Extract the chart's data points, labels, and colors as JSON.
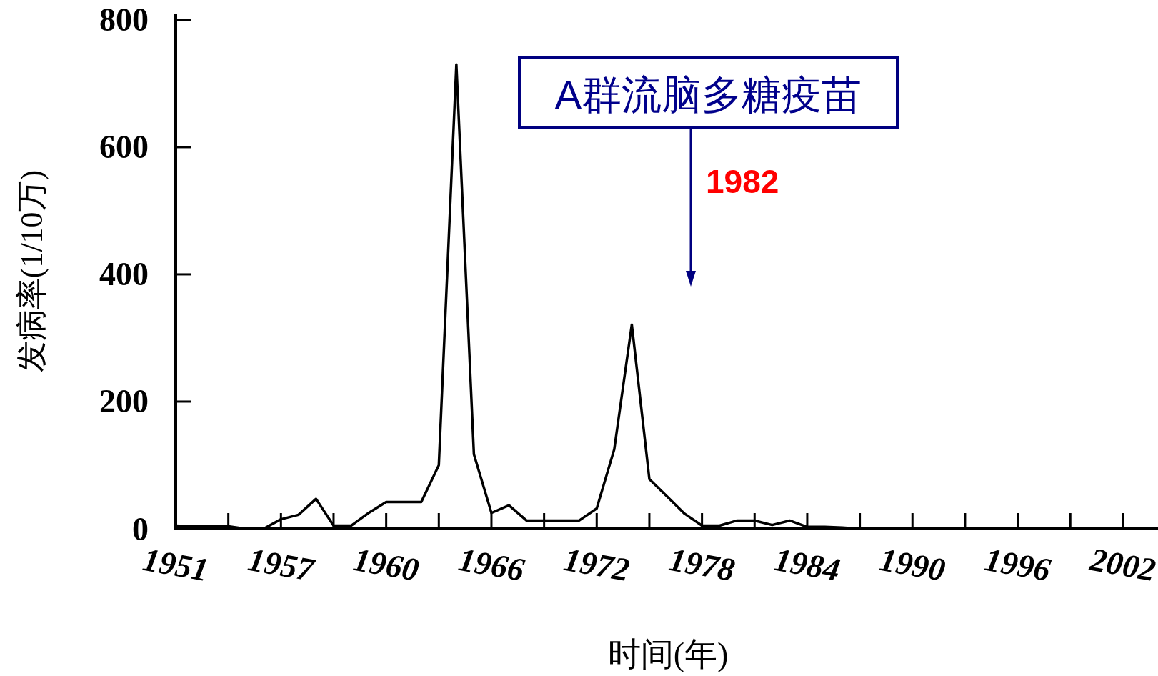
{
  "chart_data": {
    "type": "line",
    "xlabel": "时间(年)",
    "ylabel": "发病率(1/10万)",
    "categories": [
      "1951",
      null,
      null,
      null,
      null,
      null,
      "1957",
      null,
      null,
      null,
      null,
      null,
      "1960",
      null,
      null,
      null,
      null,
      null,
      "1966",
      null,
      null,
      null,
      null,
      null,
      "1972",
      null,
      null,
      null,
      null,
      null,
      "1978",
      null,
      null,
      null,
      null,
      null,
      "1984",
      null,
      null,
      null,
      null,
      null,
      "1990",
      null,
      null,
      null,
      null,
      null,
      "1996",
      null,
      null,
      null,
      null,
      null,
      "2002",
      null,
      null
    ],
    "series": [
      {
        "color": "#000000",
        "values": [
          5,
          4,
          4,
          4,
          0,
          0,
          15,
          22,
          47,
          5,
          5,
          25,
          42,
          42,
          42,
          100,
          730,
          117,
          25,
          37,
          13,
          13,
          13,
          13,
          32,
          125,
          321,
          78,
          51,
          24,
          5,
          5,
          13,
          13,
          6,
          13,
          3,
          3,
          2,
          0,
          null,
          null,
          null,
          null,
          null,
          null,
          null,
          null,
          null,
          null,
          null,
          null,
          null,
          null,
          null,
          null,
          null
        ]
      }
    ],
    "ylim": [
      0,
      810
    ],
    "yticks": [
      0,
      200,
      400,
      600,
      800
    ],
    "grid": false,
    "marker": "none",
    "line_style": "solid",
    "annotations": [
      "A群流脑多糖疫苗",
      "1982"
    ]
  }
}
